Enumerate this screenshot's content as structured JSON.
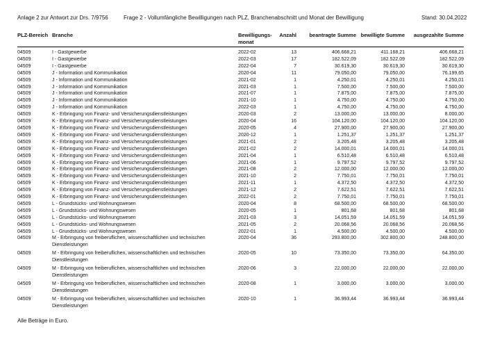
{
  "page": {
    "header": {
      "left": "Anlage 2 zur Antwort zur Drs. 7/9756",
      "center": "Frage 2 - Vollumfängliche Bewilligungen nach PLZ, Branchenabschnitt und Monat der Bewilligung",
      "right": "Stand: 30.04.2022"
    },
    "footer": "Alle Beträge in Euro."
  },
  "table": {
    "columns": [
      "PLZ-Bereich",
      "Branche",
      "Bewilligungs-monat",
      "Anzahl",
      "beantragte Summe",
      "bewilligte Summe",
      "ausgezahlte Summe"
    ],
    "rows": [
      {
        "plz": "04509",
        "branche": "I - Gastgewerbe",
        "monat": "2022-02",
        "anzahl": "13",
        "beantragt": "406.668,21",
        "bewilligt": "411.168,21",
        "ausgezahlt": "406.668,21"
      },
      {
        "plz": "04509",
        "branche": "I - Gastgewerbe",
        "monat": "2022-03",
        "anzahl": "17",
        "beantragt": "182.522,09",
        "bewilligt": "182.522,09",
        "ausgezahlt": "182.522,09"
      },
      {
        "plz": "04509",
        "branche": "I - Gastgewerbe",
        "monat": "2022-04",
        "anzahl": "7",
        "beantragt": "30.619,30",
        "bewilligt": "30.619,30",
        "ausgezahlt": "30.619,30"
      },
      {
        "plz": "04509",
        "branche": "J - Information und Kommunikation",
        "monat": "2020-04",
        "anzahl": "11",
        "beantragt": "79.050,00",
        "bewilligt": "79.050,00",
        "ausgezahlt": "76.199,65"
      },
      {
        "plz": "04509",
        "branche": "J - Information und Kommunikation",
        "monat": "2021-02",
        "anzahl": "1",
        "beantragt": "4.250,01",
        "bewilligt": "4.250,01",
        "ausgezahlt": "4.250,01"
      },
      {
        "plz": "04509",
        "branche": "J - Information und Kommunikation",
        "monat": "2021-03",
        "anzahl": "1",
        "beantragt": "7.500,00",
        "bewilligt": "7.500,00",
        "ausgezahlt": "7.500,00"
      },
      {
        "plz": "04509",
        "branche": "J - Information und Kommunikation",
        "monat": "2021-07",
        "anzahl": "1",
        "beantragt": "7.875,00",
        "bewilligt": "7.875,00",
        "ausgezahlt": "7.875,00"
      },
      {
        "plz": "04509",
        "branche": "J - Information und Kommunikation",
        "monat": "2021-10",
        "anzahl": "1",
        "beantragt": "4.750,00",
        "bewilligt": "4.750,00",
        "ausgezahlt": "4.750,00"
      },
      {
        "plz": "04509",
        "branche": "J - Information und Kommunikation",
        "monat": "2022-03",
        "anzahl": "1",
        "beantragt": "4.750,00",
        "bewilligt": "4.750,00",
        "ausgezahlt": "4.750,00"
      },
      {
        "plz": "04509",
        "branche": "K - Erbringung von Finanz- und Versicherungsdienstleistungen",
        "monat": "2020-03",
        "anzahl": "2",
        "beantragt": "13.000,00",
        "bewilligt": "13.000,00",
        "ausgezahlt": "8.000,00"
      },
      {
        "plz": "04509",
        "branche": "K - Erbringung von Finanz- und Versicherungsdienstleistungen",
        "monat": "2020-04",
        "anzahl": "16",
        "beantragt": "104.120,00",
        "bewilligt": "104.120,00",
        "ausgezahlt": "104.120,00"
      },
      {
        "plz": "04509",
        "branche": "K - Erbringung von Finanz- und Versicherungsdienstleistungen",
        "monat": "2020-05",
        "anzahl": "4",
        "beantragt": "27.900,00",
        "bewilligt": "27.900,00",
        "ausgezahlt": "27.900,00"
      },
      {
        "plz": "04509",
        "branche": "K - Erbringung von Finanz- und Versicherungsdienstleistungen",
        "monat": "2020-12",
        "anzahl": "1",
        "beantragt": "1.251,37",
        "bewilligt": "1.251,37",
        "ausgezahlt": "1.251,37"
      },
      {
        "plz": "04509",
        "branche": "K - Erbringung von Finanz- und Versicherungsdienstleistungen",
        "monat": "2021-01",
        "anzahl": "2",
        "beantragt": "3.205,48",
        "bewilligt": "3.205,48",
        "ausgezahlt": "3.205,48"
      },
      {
        "plz": "04509",
        "branche": "K - Erbringung von Finanz- und Versicherungsdienstleistungen",
        "monat": "2021-02",
        "anzahl": "2",
        "beantragt": "14.000,01",
        "bewilligt": "14.000,01",
        "ausgezahlt": "14.000,01"
      },
      {
        "plz": "04509",
        "branche": "K - Erbringung von Finanz- und Versicherungsdienstleistungen",
        "monat": "2021-04",
        "anzahl": "1",
        "beantragt": "6.510,48",
        "bewilligt": "6.510,48",
        "ausgezahlt": "6.510,48"
      },
      {
        "plz": "04509",
        "branche": "K - Erbringung von Finanz- und Versicherungsdienstleistungen",
        "monat": "2021-06",
        "anzahl": "1",
        "beantragt": "9.797,52",
        "bewilligt": "9.797,52",
        "ausgezahlt": "9.797,52"
      },
      {
        "plz": "04509",
        "branche": "K - Erbringung von Finanz- und Versicherungsdienstleistungen",
        "monat": "2021-08",
        "anzahl": "2",
        "beantragt": "12.000,00",
        "bewilligt": "12.000,00",
        "ausgezahlt": "12.000,00"
      },
      {
        "plz": "04509",
        "branche": "K - Erbringung von Finanz- und Versicherungsdienstleistungen",
        "monat": "2021-10",
        "anzahl": "2",
        "beantragt": "7.750,01",
        "bewilligt": "7.750,01",
        "ausgezahlt": "7.750,01"
      },
      {
        "plz": "04509",
        "branche": "K - Erbringung von Finanz- und Versicherungsdienstleistungen",
        "monat": "2021-11",
        "anzahl": "1",
        "beantragt": "4.372,50",
        "bewilligt": "4.372,50",
        "ausgezahlt": "4.372,50"
      },
      {
        "plz": "04509",
        "branche": "K - Erbringung von Finanz- und Versicherungsdienstleistungen",
        "monat": "2021-12",
        "anzahl": "2",
        "beantragt": "7.622,51",
        "bewilligt": "7.622,51",
        "ausgezahlt": "7.622,51"
      },
      {
        "plz": "04509",
        "branche": "K - Erbringung von Finanz- und Versicherungsdienstleistungen",
        "monat": "2022-01",
        "anzahl": "2",
        "beantragt": "7.750,01",
        "bewilligt": "7.750,01",
        "ausgezahlt": "7.750,01"
      },
      {
        "plz": "04509",
        "branche": "L - Grundstücks- und Wohnungswesen",
        "monat": "2020-04",
        "anzahl": "8",
        "beantragt": "68.500,00",
        "bewilligt": "68.500,00",
        "ausgezahlt": "68.500,00"
      },
      {
        "plz": "04509",
        "branche": "L - Grundstücks- und Wohnungswesen",
        "monat": "2020-05",
        "anzahl": "1",
        "beantragt": "801,68",
        "bewilligt": "801,68",
        "ausgezahlt": "801,68"
      },
      {
        "plz": "04509",
        "branche": "L - Grundstücks- und Wohnungswesen",
        "monat": "2021-03",
        "anzahl": "3",
        "beantragt": "14.051,59",
        "bewilligt": "14.051,59",
        "ausgezahlt": "14.051,59"
      },
      {
        "plz": "04509",
        "branche": "L - Grundstücks- und Wohnungswesen",
        "monat": "2021-05",
        "anzahl": "2",
        "beantragt": "20.068,56",
        "bewilligt": "20.068,56",
        "ausgezahlt": "20.068,56"
      },
      {
        "plz": "04509",
        "branche": "L - Grundstücks- und Wohnungswesen",
        "monat": "2022-01",
        "anzahl": "1",
        "beantragt": "4.500,00",
        "bewilligt": "4.500,00",
        "ausgezahlt": "4.500,00"
      },
      {
        "plz": "04509",
        "branche": "M - Erbringung von freiberuflichen, wissenschaftlichen und technischen Dienstleistungen",
        "monat": "2020-04",
        "anzahl": "36",
        "beantragt": "293.800,00",
        "bewilligt": "302.800,00",
        "ausgezahlt": "248.800,00"
      },
      {
        "plz": "04509",
        "branche": "M - Erbringung von freiberuflichen, wissenschaftlichen und technischen Dienstleistungen",
        "monat": "2020-05",
        "anzahl": "10",
        "beantragt": "73.350,00",
        "bewilligt": "73.350,00",
        "ausgezahlt": "64.350,00"
      },
      {
        "plz": "04509",
        "branche": "M - Erbringung von freiberuflichen, wissenschaftlichen und technischen Dienstleistungen",
        "monat": "2020-06",
        "anzahl": "3",
        "beantragt": "22.000,00",
        "bewilligt": "22.000,00",
        "ausgezahlt": "22.000,00"
      },
      {
        "plz": "04509",
        "branche": "M - Erbringung von freiberuflichen, wissenschaftlichen und technischen Dienstleistungen",
        "monat": "2020-08",
        "anzahl": "1",
        "beantragt": "3.000,00",
        "bewilligt": "3.000,00",
        "ausgezahlt": "3.000,00"
      },
      {
        "plz": "04509",
        "branche": "M - Erbringung von freiberuflichen, wissenschaftlichen und technischen Dienstleistungen",
        "monat": "2020-10",
        "anzahl": "1",
        "beantragt": "36.993,44",
        "bewilligt": "36.993,44",
        "ausgezahlt": "36.993,44"
      }
    ]
  }
}
